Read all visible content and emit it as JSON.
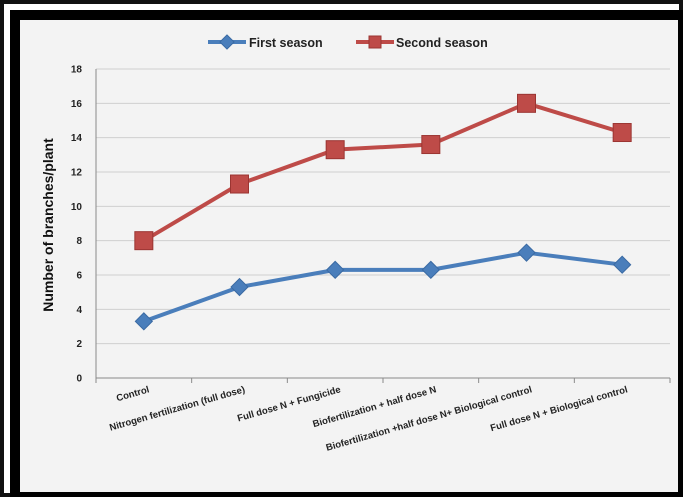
{
  "chart_data": {
    "type": "line",
    "categories": [
      "Control",
      "Nitrogen fertilization (full dose)",
      "Full dose N + Fungicide",
      "Biofertilization + half dose N",
      "Biofertilization +half dose N+ Biological control",
      "Full dose N + Biological control"
    ],
    "series": [
      {
        "name": "First season",
        "color": "#4a7ebb",
        "values": [
          3.3,
          5.3,
          6.3,
          6.3,
          7.3,
          6.6
        ]
      },
      {
        "name": "Second season",
        "color": "#be4b48",
        "values": [
          8.0,
          11.3,
          13.3,
          13.6,
          16.0,
          14.3
        ]
      }
    ],
    "ylabel": "Number of branches/plant",
    "xlabel": "",
    "ylim": [
      0,
      18
    ],
    "yticks": [
      0,
      2,
      4,
      6,
      8,
      10,
      12,
      14,
      16,
      18
    ],
    "grid": true,
    "legend_position": "top"
  }
}
